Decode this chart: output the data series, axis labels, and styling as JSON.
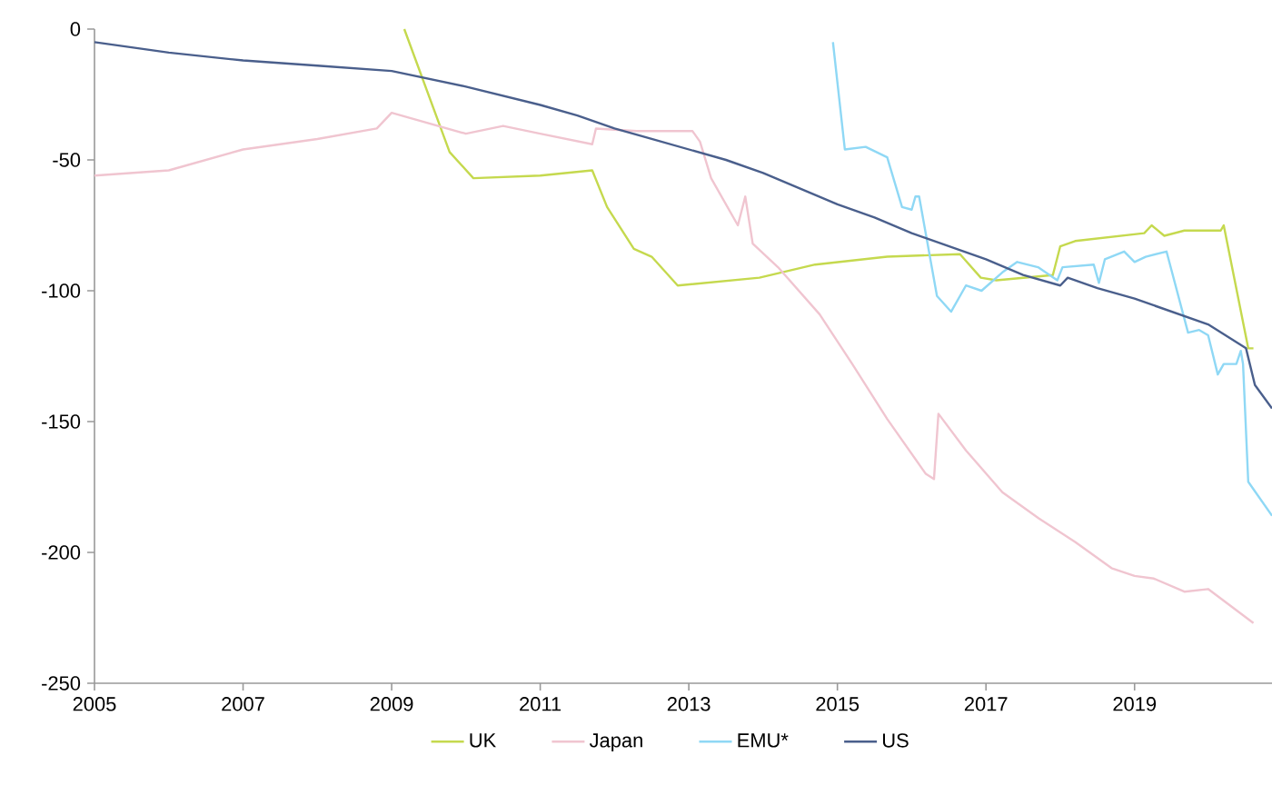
{
  "chart_data": {
    "type": "line",
    "xlim": [
      2005,
      2020.85
    ],
    "ylim": [
      -250,
      0
    ],
    "xticks": [
      2005,
      2007,
      2009,
      2011,
      2013,
      2015,
      2017,
      2019
    ],
    "yticks": [
      -250,
      -200,
      -150,
      -100,
      -50,
      0
    ],
    "grid": false,
    "legend": "bottom",
    "marker": "none",
    "line_style": "solid",
    "series": [
      {
        "name": "UK",
        "color": "#c5d94e",
        "x": [
          2009.17,
          2009.78,
          2010.1,
          2011.0,
          2011.7,
          2011.9,
          2012.26,
          2012.5,
          2012.85,
          2013.95,
          2014.7,
          2015.67,
          2016.65,
          2016.93,
          2017.14,
          2017.9,
          2018.0,
          2018.2,
          2019.13,
          2019.23,
          2019.4,
          2019.67,
          2020.16,
          2020.2,
          2020.53,
          2020.6
        ],
        "values": [
          0,
          -47,
          -57,
          -56,
          -54,
          -68,
          -84,
          -87,
          -98,
          -95,
          -90,
          -87,
          -86,
          -95,
          -96,
          -94,
          -83,
          -81,
          -78,
          -75,
          -79,
          -77,
          -77,
          -75,
          -122,
          -122
        ]
      },
      {
        "name": "Japan",
        "color": "#f0c5d0",
        "x": [
          2005,
          2006,
          2007,
          2008,
          2008.8,
          2009,
          2010,
          2010.5,
          2011,
          2011.7,
          2011.75,
          2012.3,
          2013.05,
          2013.15,
          2013.3,
          2013.66,
          2013.76,
          2013.86,
          2014.2,
          2014.76,
          2015.2,
          2015.67,
          2016.19,
          2016.3,
          2016.36,
          2016.73,
          2017.22,
          2017.71,
          2018.2,
          2018.69,
          2019.0,
          2019.26,
          2019.67,
          2019.99,
          2020.6
        ],
        "values": [
          -56,
          -54,
          -46,
          -42,
          -38,
          -32,
          -40,
          -37,
          -40,
          -44,
          -38,
          -39,
          -39,
          -43,
          -57,
          -75,
          -64,
          -82,
          -91,
          -109,
          -128,
          -149,
          -170,
          -172,
          -147,
          -161,
          -177,
          -187,
          -196,
          -206,
          -209,
          -210,
          -215,
          -214,
          -227
        ]
      },
      {
        "name": "EMU*",
        "color": "#8fd8f5",
        "x": [
          2014.94,
          2015.1,
          2015.38,
          2015.67,
          2015.87,
          2016.0,
          2016.05,
          2016.1,
          2016.34,
          2016.53,
          2016.73,
          2016.94,
          2017.22,
          2017.42,
          2017.7,
          2017.96,
          2018.03,
          2018.45,
          2018.52,
          2018.6,
          2018.86,
          2019.0,
          2019.15,
          2019.43,
          2019.72,
          2019.87,
          2019.99,
          2020.12,
          2020.2,
          2020.37,
          2020.43,
          2020.46,
          2020.53,
          2020.85
        ],
        "values": [
          -5,
          -46,
          -45,
          -49,
          -68,
          -69,
          -64,
          -64,
          -102,
          -108,
          -98,
          -100,
          -93,
          -89,
          -91,
          -96,
          -91,
          -90,
          -97,
          -88,
          -85,
          -89,
          -87,
          -85,
          -116,
          -115,
          -117,
          -132,
          -128,
          -128,
          -123,
          -128,
          -173,
          -186
        ]
      },
      {
        "name": "US",
        "color": "#4a5f8c",
        "x": [
          2005,
          2006,
          2007,
          2008,
          2009,
          2010,
          2011,
          2011.5,
          2012,
          2012.5,
          2013,
          2013.5,
          2014,
          2014.5,
          2015,
          2015.5,
          2016,
          2016.5,
          2017,
          2017.5,
          2018,
          2018.1,
          2018.5,
          2019,
          2019.5,
          2020,
          2020.5,
          2020.62,
          2020.85
        ],
        "values": [
          -5,
          -9,
          -12,
          -14,
          -16,
          -22,
          -29,
          -33,
          -38,
          -42,
          -46,
          -50,
          -55,
          -61,
          -67,
          -72,
          -78,
          -83,
          -88,
          -94,
          -98,
          -95,
          -99,
          -103,
          -108,
          -113,
          -122,
          -136,
          -145
        ]
      }
    ]
  }
}
